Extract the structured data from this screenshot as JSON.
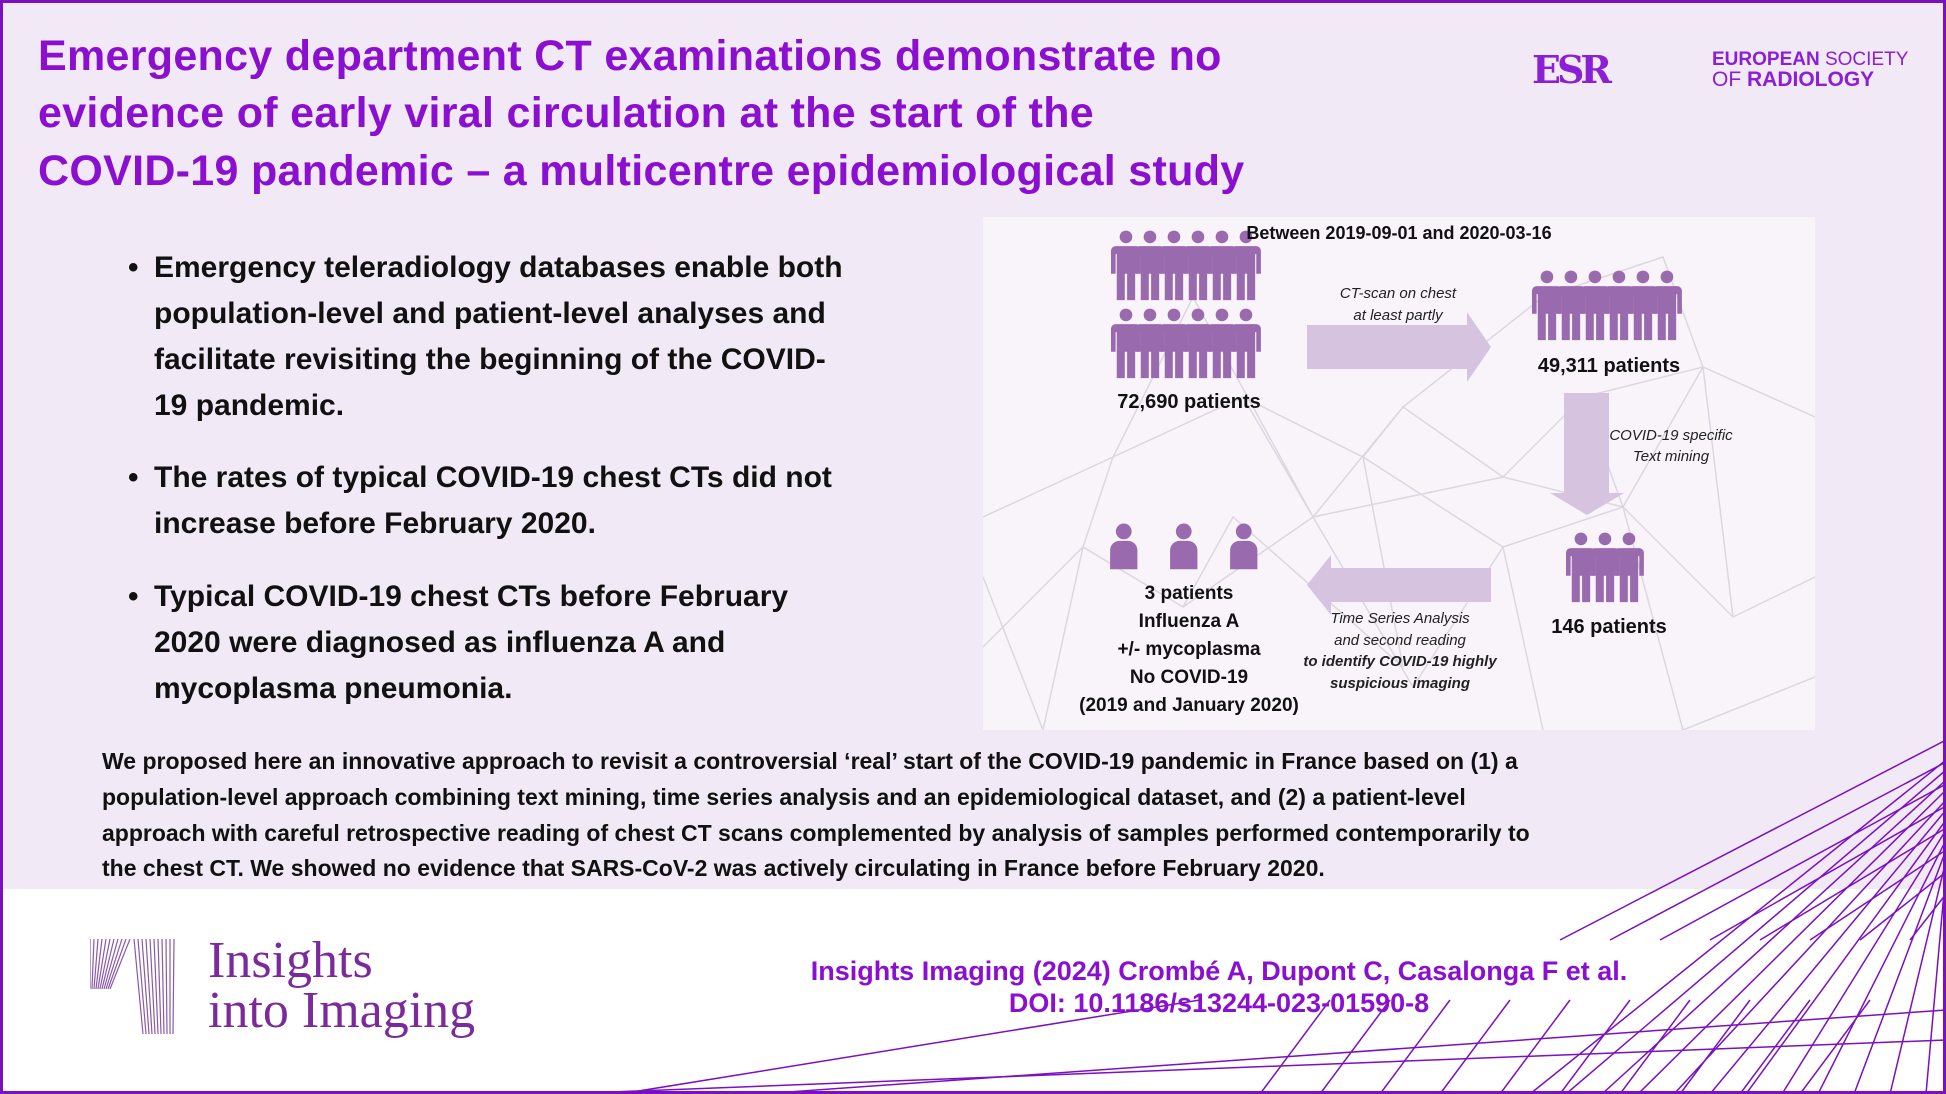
{
  "header": {
    "title_lines": [
      "Emergency department CT examinations demonstrate no",
      "evidence of early viral circulation at the start of the",
      "COVID-19 pandemic – a multicentre epidemiological study"
    ],
    "society_logo": {
      "mark": "ESR",
      "line1_bold": "EUROPEAN",
      "line1_rest": " SOCIETY",
      "line2_pre": "OF ",
      "line2_bold": "RADIOLOGY"
    }
  },
  "bullets": [
    {
      "symbol": "•",
      "lines": [
        "Emergency teleradiology databases enable both",
        "population-level and patient-level analyses and",
        "facilitate revisiting the beginning of the COVID-",
        "19 pandemic."
      ]
    },
    {
      "symbol": "•",
      "lines": [
        "The rates of typical COVID-19 chest CTs did not",
        "increase before February 2020."
      ]
    },
    {
      "symbol": "•",
      "lines": [
        "Typical COVID-19 chest CTs before February",
        "2020 were diagnosed as influenza A and",
        "mycoplasma pneumonia."
      ]
    }
  ],
  "diagram": {
    "period": "Between 2019-09-01 and 2020-03-16",
    "step1_count": "72,690 patients",
    "arrow1_label": [
      "CT-scan on chest",
      "at least partly"
    ],
    "step2_count": "49,311 patients",
    "arrow2_label": [
      "COVID-19 specific",
      "Text mining"
    ],
    "step3_count": "146 patients",
    "arrow3_label": [
      "Time Series Analysis",
      "and second reading",
      "to identify COVID-19 highly",
      "suspicious imaging"
    ],
    "step4_lines": [
      "3 patients",
      "Influenza A",
      "+/- mycoplasma",
      "No COVID-19",
      "(2019 and January 2020)"
    ],
    "icon_color": "#9a6aae",
    "arrow_color": "#d5c3e0"
  },
  "summary_lines": [
    "We proposed here an innovative approach to revisit a controversial ‘real’ start of the COVID-19 pandemic in France based on (1) a",
    "population-level approach combining text mining, time series analysis and an epidemiological dataset, and (2) a patient-level",
    "approach with careful retrospective reading of chest CT scans complemented by analysis of samples performed contemporarily to",
    "the chest CT. We showed no evidence that SARS-CoV-2 was actively circulating in France before February 2020."
  ],
  "footer": {
    "journal_logo": [
      "Insights",
      "into Imaging"
    ],
    "citation": "Insights Imaging (2024) Crombé A, Dupont C, Casalonga F et al.",
    "doi": "DOI: 10.1186/s13244-023-01590-8"
  },
  "colors": {
    "accent": "#8b0fd0",
    "border": "#7a10c0",
    "background": "#f1e9f6"
  }
}
